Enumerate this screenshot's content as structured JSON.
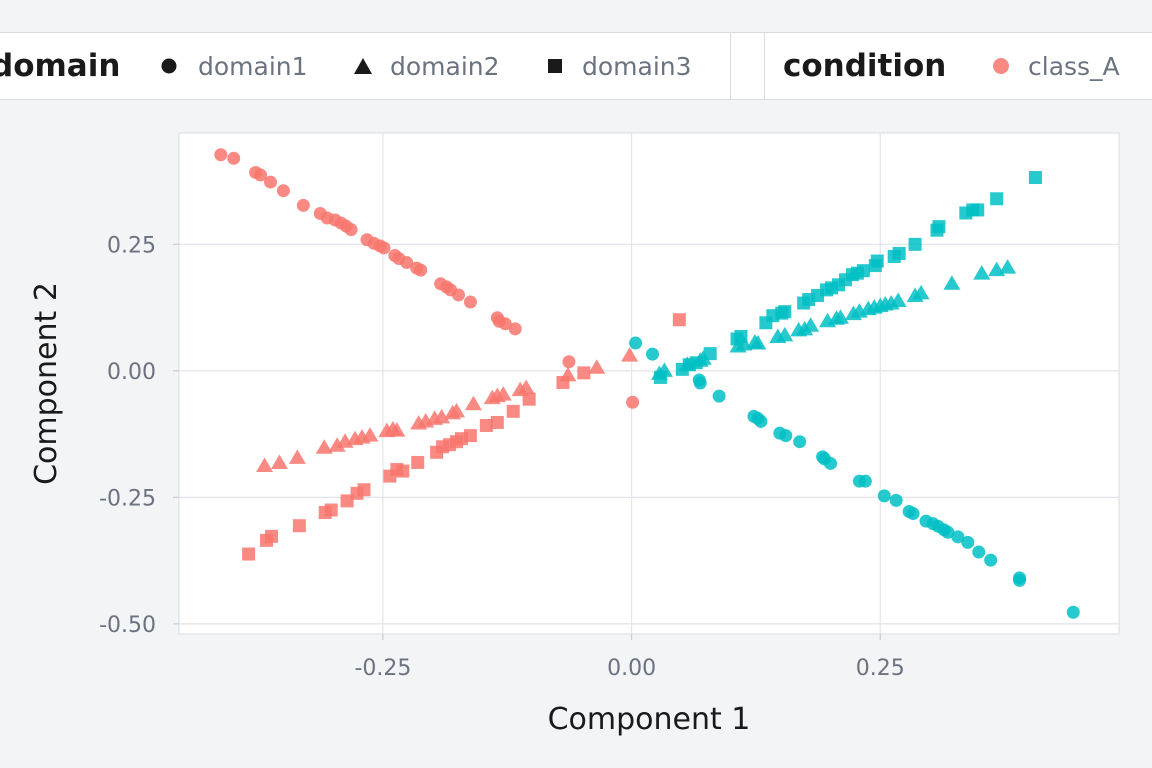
{
  "legend": {
    "domain_title": "domain",
    "domain_items": [
      {
        "label": "domain1",
        "shape": "circle"
      },
      {
        "label": "domain2",
        "shape": "triangle"
      },
      {
        "label": "domain3",
        "shape": "square"
      }
    ],
    "condition_title": "condition",
    "condition_items": [
      {
        "label": "class_A",
        "color": "#f8766d"
      }
    ]
  },
  "colors": {
    "red": "#f8766d",
    "teal": "#00bfc4"
  },
  "chart_data": {
    "type": "scatter",
    "xlabel": "Component 1",
    "ylabel": "Component 2",
    "xlim": [
      -0.455,
      0.49
    ],
    "ylim": [
      -0.52,
      0.47
    ],
    "xticks": [
      -0.25,
      0.0,
      0.25
    ],
    "xtick_labels": [
      "-0.25",
      "0.00",
      "0.25"
    ],
    "yticks": [
      -0.5,
      -0.25,
      0.0,
      0.25
    ],
    "ytick_labels": [
      "-0.50",
      "-0.25",
      "0.00",
      "0.25"
    ],
    "grid": true,
    "legend_position": "top",
    "series": [
      {
        "domain": "domain1",
        "shape": "circle",
        "color": "#f8766d",
        "points": [
          [
            -0.413,
            0.427
          ],
          [
            -0.4,
            0.42
          ],
          [
            -0.378,
            0.392
          ],
          [
            -0.373,
            0.387
          ],
          [
            -0.363,
            0.373
          ],
          [
            -0.35,
            0.356
          ],
          [
            -0.33,
            0.327
          ],
          [
            -0.313,
            0.311
          ],
          [
            -0.306,
            0.302
          ],
          [
            -0.298,
            0.298
          ],
          [
            -0.292,
            0.292
          ],
          [
            -0.287,
            0.286
          ],
          [
            -0.282,
            0.279
          ],
          [
            -0.266,
            0.259
          ],
          [
            -0.259,
            0.252
          ],
          [
            -0.253,
            0.247
          ],
          [
            -0.249,
            0.243
          ],
          [
            -0.238,
            0.228
          ],
          [
            -0.234,
            0.222
          ],
          [
            -0.226,
            0.214
          ],
          [
            -0.216,
            0.203
          ],
          [
            -0.212,
            0.199
          ],
          [
            -0.192,
            0.172
          ],
          [
            -0.186,
            0.166
          ],
          [
            -0.182,
            0.16
          ],
          [
            -0.174,
            0.15
          ],
          [
            -0.162,
            0.136
          ],
          [
            -0.135,
            0.105
          ],
          [
            -0.133,
            0.098
          ],
          [
            -0.127,
            0.093
          ],
          [
            -0.117,
            0.083
          ],
          [
            -0.063,
            0.018
          ],
          [
            0.001,
            -0.062
          ]
        ]
      },
      {
        "domain": "domain2",
        "shape": "triangle",
        "color": "#f8766d",
        "points": [
          [
            -0.369,
            -0.188
          ],
          [
            -0.354,
            -0.182
          ],
          [
            -0.336,
            -0.172
          ],
          [
            -0.309,
            -0.152
          ],
          [
            -0.296,
            -0.148
          ],
          [
            -0.288,
            -0.14
          ],
          [
            -0.278,
            -0.135
          ],
          [
            -0.271,
            -0.132
          ],
          [
            -0.263,
            -0.128
          ],
          [
            -0.246,
            -0.119
          ],
          [
            -0.24,
            -0.116
          ],
          [
            -0.236,
            -0.118
          ],
          [
            -0.214,
            -0.104
          ],
          [
            -0.207,
            -0.1
          ],
          [
            -0.198,
            -0.095
          ],
          [
            -0.191,
            -0.092
          ],
          [
            -0.18,
            -0.084
          ],
          [
            -0.176,
            -0.08
          ],
          [
            -0.159,
            -0.066
          ],
          [
            -0.14,
            -0.054
          ],
          [
            -0.135,
            -0.05
          ],
          [
            -0.129,
            -0.047
          ],
          [
            -0.112,
            -0.038
          ],
          [
            -0.106,
            -0.034
          ],
          [
            -0.064,
            -0.009
          ],
          [
            -0.035,
            0.006
          ],
          [
            -0.002,
            0.03
          ]
        ]
      },
      {
        "domain": "domain3",
        "shape": "square",
        "color": "#f8766d",
        "points": [
          [
            -0.385,
            -0.362
          ],
          [
            -0.367,
            -0.335
          ],
          [
            -0.362,
            -0.327
          ],
          [
            -0.334,
            -0.306
          ],
          [
            -0.308,
            -0.28
          ],
          [
            -0.302,
            -0.275
          ],
          [
            -0.286,
            -0.257
          ],
          [
            -0.276,
            -0.242
          ],
          [
            -0.269,
            -0.235
          ],
          [
            -0.243,
            -0.208
          ],
          [
            -0.236,
            -0.195
          ],
          [
            -0.23,
            -0.198
          ],
          [
            -0.215,
            -0.181
          ],
          [
            -0.196,
            -0.161
          ],
          [
            -0.19,
            -0.15
          ],
          [
            -0.183,
            -0.146
          ],
          [
            -0.176,
            -0.14
          ],
          [
            -0.171,
            -0.134
          ],
          [
            -0.162,
            -0.128
          ],
          [
            -0.146,
            -0.108
          ],
          [
            -0.135,
            -0.102
          ],
          [
            -0.119,
            -0.08
          ],
          [
            -0.103,
            -0.056
          ],
          [
            -0.069,
            -0.023
          ],
          [
            -0.048,
            -0.004
          ],
          [
            0.048,
            0.101
          ]
        ]
      },
      {
        "domain": "domain1",
        "shape": "circle",
        "color": "#00bfc4",
        "points": [
          [
            0.004,
            0.055
          ],
          [
            0.021,
            0.033
          ],
          [
            0.068,
            -0.018
          ],
          [
            0.069,
            -0.024
          ],
          [
            0.088,
            -0.05
          ],
          [
            0.123,
            -0.09
          ],
          [
            0.127,
            -0.094
          ],
          [
            0.13,
            -0.1
          ],
          [
            0.149,
            -0.123
          ],
          [
            0.155,
            -0.128
          ],
          [
            0.169,
            -0.14
          ],
          [
            0.192,
            -0.17
          ],
          [
            0.194,
            -0.174
          ],
          [
            0.2,
            -0.183
          ],
          [
            0.229,
            -0.218
          ],
          [
            0.235,
            -0.218
          ],
          [
            0.254,
            -0.247
          ],
          [
            0.266,
            -0.256
          ],
          [
            0.279,
            -0.278
          ],
          [
            0.283,
            -0.282
          ],
          [
            0.296,
            -0.297
          ],
          [
            0.303,
            -0.302
          ],
          [
            0.308,
            -0.307
          ],
          [
            0.314,
            -0.314
          ],
          [
            0.318,
            -0.319
          ],
          [
            0.328,
            -0.328
          ],
          [
            0.338,
            -0.339
          ],
          [
            0.349,
            -0.358
          ],
          [
            0.361,
            -0.374
          ],
          [
            0.39,
            -0.409
          ],
          [
            0.39,
            -0.414
          ],
          [
            0.444,
            -0.477
          ]
        ]
      },
      {
        "domain": "domain2",
        "shape": "triangle",
        "color": "#00bfc4",
        "points": [
          [
            0.028,
            -0.006
          ],
          [
            0.033,
            0.0
          ],
          [
            0.056,
            0.012
          ],
          [
            0.069,
            0.02
          ],
          [
            0.072,
            0.024
          ],
          [
            0.107,
            0.048
          ],
          [
            0.113,
            0.052
          ],
          [
            0.124,
            0.056
          ],
          [
            0.127,
            0.054
          ],
          [
            0.147,
            0.067
          ],
          [
            0.154,
            0.07
          ],
          [
            0.168,
            0.08
          ],
          [
            0.174,
            0.082
          ],
          [
            0.18,
            0.089
          ],
          [
            0.197,
            0.098
          ],
          [
            0.206,
            0.103
          ],
          [
            0.21,
            0.105
          ],
          [
            0.223,
            0.112
          ],
          [
            0.229,
            0.117
          ],
          [
            0.238,
            0.122
          ],
          [
            0.244,
            0.125
          ],
          [
            0.25,
            0.128
          ],
          [
            0.255,
            0.131
          ],
          [
            0.261,
            0.133
          ],
          [
            0.268,
            0.138
          ],
          [
            0.285,
            0.148
          ],
          [
            0.291,
            0.153
          ],
          [
            0.322,
            0.172
          ],
          [
            0.352,
            0.192
          ],
          [
            0.367,
            0.199
          ],
          [
            0.378,
            0.204
          ]
        ]
      },
      {
        "domain": "domain3",
        "shape": "square",
        "color": "#00bfc4",
        "points": [
          [
            0.029,
            -0.013
          ],
          [
            0.051,
            0.003
          ],
          [
            0.058,
            0.012
          ],
          [
            0.065,
            0.016
          ],
          [
            0.079,
            0.034
          ],
          [
            0.106,
            0.063
          ],
          [
            0.11,
            0.068
          ],
          [
            0.135,
            0.095
          ],
          [
            0.142,
            0.109
          ],
          [
            0.151,
            0.114
          ],
          [
            0.154,
            0.117
          ],
          [
            0.173,
            0.134
          ],
          [
            0.178,
            0.141
          ],
          [
            0.187,
            0.149
          ],
          [
            0.196,
            0.16
          ],
          [
            0.201,
            0.164
          ],
          [
            0.208,
            0.17
          ],
          [
            0.215,
            0.18
          ],
          [
            0.222,
            0.19
          ],
          [
            0.227,
            0.193
          ],
          [
            0.233,
            0.198
          ],
          [
            0.245,
            0.208
          ],
          [
            0.247,
            0.217
          ],
          [
            0.264,
            0.226
          ],
          [
            0.269,
            0.232
          ],
          [
            0.285,
            0.25
          ],
          [
            0.307,
            0.278
          ],
          [
            0.309,
            0.285
          ],
          [
            0.336,
            0.312
          ],
          [
            0.343,
            0.318
          ],
          [
            0.348,
            0.318
          ],
          [
            0.367,
            0.34
          ],
          [
            0.406,
            0.382
          ]
        ]
      }
    ]
  }
}
